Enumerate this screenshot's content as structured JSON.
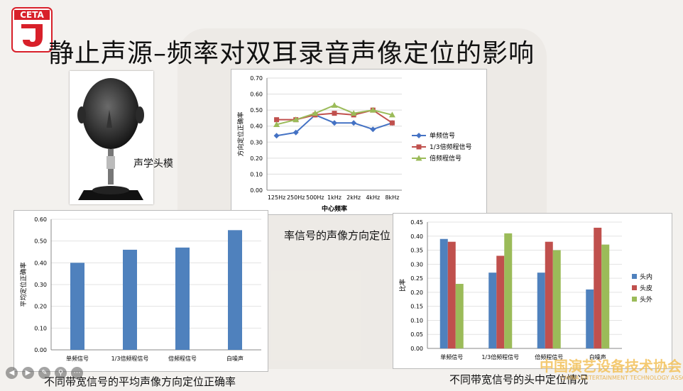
{
  "logo": {
    "text": "CETA"
  },
  "slide": {
    "title": "静止声源–频率对双耳录音声像定位的影响"
  },
  "photo": {
    "label": "声学头模"
  },
  "chart_line_caption": "率信号的声像方向定位",
  "chart_bar1_caption": "不同带宽信号的平均声像方向定位正确率",
  "chart_bar2_caption": "不同带宽信号的头中定位情况",
  "watermark": {
    "cn": "中国演艺设备技术协会",
    "en": "CHINA ENTERTAINMENT TECHNOLOGY ASSOCIATION"
  },
  "controls": [
    "prev",
    "next",
    "pen",
    "zoom",
    "menu"
  ],
  "chart_data": [
    {
      "type": "line",
      "categories": [
        "125Hz",
        "250Hz",
        "500Hz",
        "1kHz",
        "2kHz",
        "4kHz",
        "8kHz"
      ],
      "xlabel": "中心频率",
      "ylabel": "方向定位正确率",
      "ylim": [
        0,
        0.7
      ],
      "yticks": [
        "0.00",
        "0.10",
        "0.20",
        "0.30",
        "0.40",
        "0.50",
        "0.60",
        "0.70"
      ],
      "legend_position": "right",
      "series": [
        {
          "name": "单频信号",
          "color": "#4472c4",
          "marker": "diamond",
          "values": [
            0.34,
            0.36,
            0.47,
            0.42,
            0.42,
            0.38,
            0.42
          ]
        },
        {
          "name": "1/3倍频程信号",
          "color": "#c0504d",
          "marker": "square",
          "values": [
            0.44,
            0.44,
            0.47,
            0.48,
            0.47,
            0.5,
            0.42
          ]
        },
        {
          "name": "倍频程信号",
          "color": "#9bbb59",
          "marker": "triangle",
          "values": [
            0.41,
            0.44,
            0.48,
            0.53,
            0.48,
            0.5,
            0.47
          ]
        }
      ]
    },
    {
      "type": "bar",
      "categories": [
        "单频信号",
        "1/3倍频程信号",
        "倍频程信号",
        "白噪声"
      ],
      "values": [
        0.4,
        0.46,
        0.47,
        0.55
      ],
      "ylabel": "平均定位正确率",
      "ylim": [
        0,
        0.6
      ],
      "yticks": [
        "0.00",
        "0.10",
        "0.20",
        "0.30",
        "0.40",
        "0.50",
        "0.60"
      ],
      "color": "#4f81bd"
    },
    {
      "type": "bar",
      "categories": [
        "单频信号",
        "1/3倍频程信号",
        "倍频程信号",
        "白噪声"
      ],
      "ylabel": "比率",
      "ylim": [
        0,
        0.45
      ],
      "yticks": [
        "0.00",
        "0.05",
        "0.10",
        "0.15",
        "0.20",
        "0.25",
        "0.30",
        "0.35",
        "0.40",
        "0.45"
      ],
      "legend_position": "right",
      "series": [
        {
          "name": "头内",
          "color": "#4f81bd",
          "values": [
            0.39,
            0.27,
            0.27,
            0.21
          ]
        },
        {
          "name": "头皮",
          "color": "#c0504d",
          "values": [
            0.38,
            0.33,
            0.38,
            0.43
          ]
        },
        {
          "name": "头外",
          "color": "#9bbb59",
          "values": [
            0.23,
            0.41,
            0.35,
            0.37
          ]
        }
      ]
    }
  ]
}
